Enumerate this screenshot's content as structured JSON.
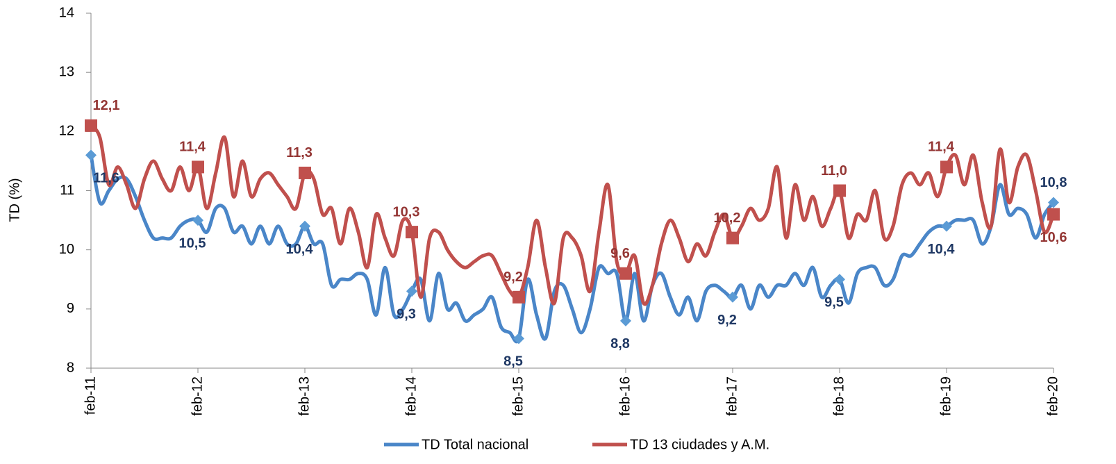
{
  "chart_data": {
    "type": "line",
    "ylabel": "TD (%)",
    "categories": [
      "feb-11",
      null,
      null,
      null,
      null,
      null,
      null,
      null,
      null,
      null,
      null,
      null,
      "feb-12",
      null,
      null,
      null,
      null,
      null,
      null,
      null,
      null,
      null,
      null,
      null,
      "feb-13",
      null,
      null,
      null,
      null,
      null,
      null,
      null,
      null,
      null,
      null,
      null,
      "feb-14",
      null,
      null,
      null,
      null,
      null,
      null,
      null,
      null,
      null,
      null,
      null,
      "feb-15",
      null,
      null,
      null,
      null,
      null,
      null,
      null,
      null,
      null,
      null,
      null,
      "feb-16",
      null,
      null,
      null,
      null,
      null,
      null,
      null,
      null,
      null,
      null,
      null,
      "feb-17",
      null,
      null,
      null,
      null,
      null,
      null,
      null,
      null,
      null,
      null,
      null,
      "feb-18",
      null,
      null,
      null,
      null,
      null,
      null,
      null,
      null,
      null,
      null,
      null,
      "feb-19",
      null,
      null,
      null,
      null,
      null,
      null,
      null,
      null,
      null,
      null,
      null,
      "feb-20"
    ],
    "series": [
      {
        "name": "TD Total nacional",
        "color": "#4a86c8",
        "label_color": "#1f3864",
        "values": [
          11.6,
          10.8,
          11.0,
          11.2,
          11.2,
          10.9,
          10.5,
          10.2,
          10.2,
          10.2,
          10.4,
          10.5,
          10.5,
          10.3,
          10.7,
          10.7,
          10.3,
          10.4,
          10.1,
          10.4,
          10.1,
          10.4,
          10.1,
          10.1,
          10.4,
          10.1,
          10.1,
          9.4,
          9.5,
          9.5,
          9.6,
          9.5,
          8.9,
          9.7,
          8.9,
          9.0,
          9.3,
          9.5,
          8.8,
          9.6,
          9.0,
          9.1,
          8.8,
          8.9,
          9.0,
          9.2,
          8.7,
          8.6,
          8.5,
          9.5,
          8.9,
          8.5,
          9.3,
          9.4,
          9.0,
          8.6,
          9.0,
          9.7,
          9.6,
          9.6,
          8.8,
          9.6,
          8.8,
          9.4,
          9.6,
          9.2,
          8.9,
          9.2,
          8.8,
          9.3,
          9.4,
          9.3,
          9.2,
          9.4,
          9.0,
          9.4,
          9.2,
          9.4,
          9.4,
          9.6,
          9.4,
          9.7,
          9.2,
          9.4,
          9.5,
          9.1,
          9.6,
          9.7,
          9.7,
          9.4,
          9.5,
          9.9,
          9.9,
          10.1,
          10.3,
          10.4,
          10.4,
          10.5,
          10.5,
          10.5,
          10.1,
          10.4,
          11.1,
          10.6,
          10.7,
          10.6,
          10.2,
          10.6,
          10.8
        ],
        "value_labels": [
          "11,6",
          null,
          null,
          null,
          null,
          null,
          null,
          null,
          null,
          null,
          null,
          null,
          "10,5",
          null,
          null,
          null,
          null,
          null,
          null,
          null,
          null,
          null,
          null,
          null,
          "10,4",
          null,
          null,
          null,
          null,
          null,
          null,
          null,
          null,
          null,
          null,
          null,
          "9,3",
          null,
          null,
          null,
          null,
          null,
          null,
          null,
          null,
          null,
          null,
          null,
          "8,5",
          null,
          null,
          null,
          null,
          null,
          null,
          null,
          null,
          null,
          null,
          null,
          "8,8",
          null,
          null,
          null,
          null,
          null,
          null,
          null,
          null,
          null,
          null,
          null,
          "9,2",
          null,
          null,
          null,
          null,
          null,
          null,
          null,
          null,
          null,
          null,
          null,
          "9,5",
          null,
          null,
          null,
          null,
          null,
          null,
          null,
          null,
          null,
          null,
          null,
          "10,4",
          null,
          null,
          null,
          null,
          null,
          null,
          null,
          null,
          null,
          null,
          null,
          "10,8"
        ]
      },
      {
        "name": "TD 13 ciudades y A.M.",
        "color": "#c0504d",
        "label_color": "#943634",
        "values": [
          12.1,
          11.9,
          11.1,
          11.4,
          11.1,
          10.7,
          11.2,
          11.5,
          11.2,
          11.0,
          11.4,
          11.0,
          11.4,
          10.7,
          11.3,
          11.9,
          10.9,
          11.5,
          10.9,
          11.2,
          11.3,
          11.1,
          10.9,
          10.7,
          11.3,
          11.2,
          10.6,
          10.7,
          10.1,
          10.7,
          10.3,
          9.7,
          10.6,
          10.2,
          9.9,
          10.5,
          10.3,
          9.2,
          10.2,
          10.3,
          10.0,
          9.8,
          9.7,
          9.8,
          9.9,
          9.9,
          9.6,
          9.3,
          9.2,
          9.7,
          10.5,
          9.7,
          9.1,
          10.2,
          10.2,
          9.9,
          9.3,
          10.3,
          11.1,
          9.8,
          9.6,
          9.9,
          9.1,
          9.4,
          10.1,
          10.5,
          10.2,
          9.8,
          10.1,
          9.9,
          10.3,
          10.6,
          10.2,
          10.4,
          10.7,
          10.5,
          10.7,
          11.4,
          10.2,
          11.1,
          10.5,
          10.9,
          10.4,
          10.7,
          11.0,
          10.2,
          10.6,
          10.5,
          11.0,
          10.2,
          10.4,
          11.1,
          11.3,
          11.1,
          11.3,
          10.9,
          11.4,
          11.6,
          11.1,
          11.6,
          10.8,
          10.4,
          11.7,
          10.8,
          11.4,
          11.6,
          11.0,
          10.3,
          10.6
        ],
        "value_labels": [
          "12,1",
          null,
          null,
          null,
          null,
          null,
          null,
          null,
          null,
          null,
          null,
          null,
          "11,4",
          null,
          null,
          null,
          null,
          null,
          null,
          null,
          null,
          null,
          null,
          null,
          "11,3",
          null,
          null,
          null,
          null,
          null,
          null,
          null,
          null,
          null,
          null,
          null,
          "10,3",
          null,
          null,
          null,
          null,
          null,
          null,
          null,
          null,
          null,
          null,
          null,
          "9,2",
          null,
          null,
          null,
          null,
          null,
          null,
          null,
          null,
          null,
          null,
          null,
          "9,6",
          null,
          null,
          null,
          null,
          null,
          null,
          null,
          null,
          null,
          null,
          null,
          "10,2",
          null,
          null,
          null,
          null,
          null,
          null,
          null,
          null,
          null,
          null,
          null,
          "11,0",
          null,
          null,
          null,
          null,
          null,
          null,
          null,
          null,
          null,
          null,
          null,
          "11,4",
          null,
          null,
          null,
          null,
          null,
          null,
          null,
          null,
          null,
          null,
          null,
          "10,6"
        ]
      }
    ],
    "ylim": [
      8,
      14
    ],
    "yticks": [
      8,
      9,
      10,
      11,
      12,
      13,
      14
    ],
    "legend": "bottom"
  }
}
